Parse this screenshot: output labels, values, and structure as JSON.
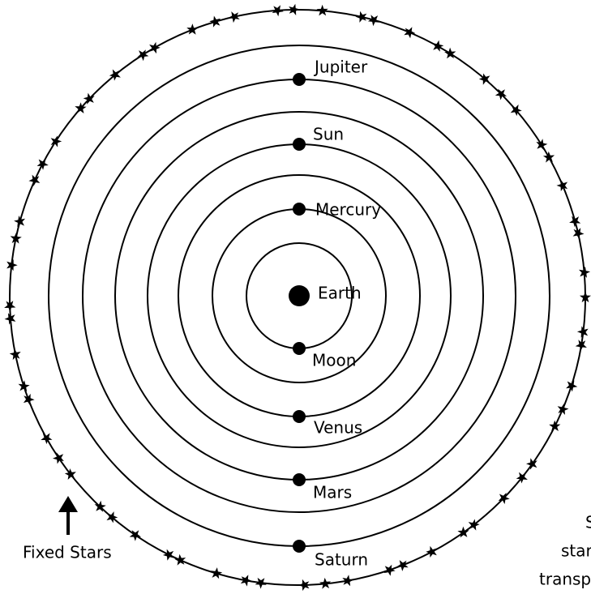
{
  "bodies": {
    "earth": "Earth",
    "moon": "Moon",
    "mercury": "Mercury",
    "venus": "Venus",
    "sun": "Sun",
    "mars": "Mars",
    "jupiter": "Jupiter",
    "saturn": "Saturn"
  },
  "fixed_stars_label": "Fixed Stars",
  "caption_fragment": [
    "S",
    "star",
    "transp"
  ]
}
